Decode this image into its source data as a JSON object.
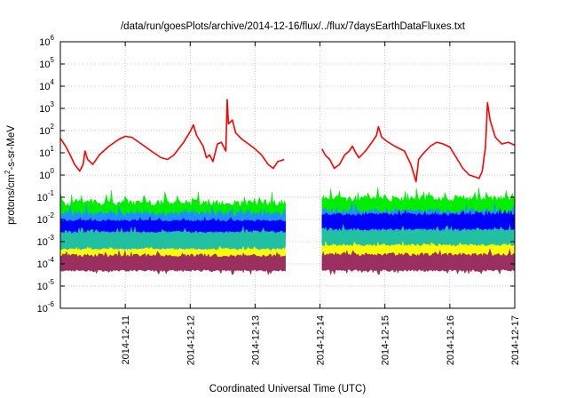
{
  "chart_data": {
    "type": "line",
    "title": "/data/run/goesPlots/archive/2014-12-16/flux/../flux/7daysEarthDataFluxes.txt",
    "xlabel": "Coordinated Universal Time (UTC)",
    "ylabel_parts": {
      "pre": "protons/cm",
      "sup": "2",
      "post": "-s-sr-MeV"
    },
    "x_range_days": [
      0,
      7
    ],
    "x_ticks": [
      {
        "day": 1,
        "label": "2014-12-11"
      },
      {
        "day": 2,
        "label": "2014-12-12"
      },
      {
        "day": 3,
        "label": "2014-12-13"
      },
      {
        "day": 4,
        "label": "2014-12-14"
      },
      {
        "day": 5,
        "label": "2014-12-15"
      },
      {
        "day": 6,
        "label": "2014-12-16"
      },
      {
        "day": 7,
        "label": "2014-12-17"
      }
    ],
    "y_scale": "log",
    "y_range_exp": [
      -6,
      6
    ],
    "y_ticks": [
      {
        "exp": 6,
        "base": "10",
        "sup": "6"
      },
      {
        "exp": 5,
        "base": "10",
        "sup": "5"
      },
      {
        "exp": 4,
        "base": "10",
        "sup": "4"
      },
      {
        "exp": 3,
        "base": "10",
        "sup": "3"
      },
      {
        "exp": 2,
        "base": "10",
        "sup": "2"
      },
      {
        "exp": 1,
        "base": "10",
        "sup": "1"
      },
      {
        "exp": 0,
        "base": "10",
        "sup": "0"
      },
      {
        "exp": -1,
        "base": "10",
        "sup": "-1"
      },
      {
        "exp": -2,
        "base": "10",
        "sup": "-2"
      },
      {
        "exp": -3,
        "base": "10",
        "sup": "-3"
      },
      {
        "exp": -4,
        "base": "10",
        "sup": "-4"
      },
      {
        "exp": -5,
        "base": "10",
        "sup": "-5"
      },
      {
        "exp": -6,
        "base": "10",
        "sup": "-6"
      }
    ],
    "grid": true,
    "data_gap_days": [
      3.47,
      4.03
    ],
    "series": [
      {
        "name": "red",
        "color": "#ff0000",
        "style": "line",
        "points": [
          [
            0.0,
            45
          ],
          [
            0.08,
            20
          ],
          [
            0.15,
            8
          ],
          [
            0.22,
            3
          ],
          [
            0.3,
            1.5
          ],
          [
            0.35,
            3
          ],
          [
            0.38,
            12
          ],
          [
            0.42,
            5
          ],
          [
            0.5,
            3
          ],
          [
            0.6,
            8
          ],
          [
            0.75,
            20
          ],
          [
            0.9,
            40
          ],
          [
            1.0,
            55
          ],
          [
            1.1,
            50
          ],
          [
            1.25,
            25
          ],
          [
            1.4,
            12
          ],
          [
            1.55,
            6
          ],
          [
            1.65,
            5
          ],
          [
            1.75,
            8
          ],
          [
            1.9,
            30
          ],
          [
            2.0,
            90
          ],
          [
            2.05,
            180
          ],
          [
            2.1,
            60
          ],
          [
            2.2,
            20
          ],
          [
            2.25,
            6
          ],
          [
            2.3,
            8
          ],
          [
            2.35,
            4
          ],
          [
            2.42,
            25
          ],
          [
            2.48,
            30
          ],
          [
            2.55,
            12
          ],
          [
            2.57,
            2500
          ],
          [
            2.59,
            200
          ],
          [
            2.65,
            300
          ],
          [
            2.7,
            80
          ],
          [
            2.8,
            40
          ],
          [
            2.9,
            25
          ],
          [
            3.0,
            15
          ],
          [
            3.1,
            8
          ],
          [
            3.2,
            3
          ],
          [
            3.28,
            2
          ],
          [
            3.35,
            4
          ],
          [
            3.45,
            5
          ],
          [
            4.03,
            15
          ],
          [
            4.08,
            8
          ],
          [
            4.15,
            5
          ],
          [
            4.22,
            2
          ],
          [
            4.3,
            3
          ],
          [
            4.38,
            8
          ],
          [
            4.45,
            12
          ],
          [
            4.5,
            20
          ],
          [
            4.55,
            10
          ],
          [
            4.6,
            6
          ],
          [
            4.7,
            12
          ],
          [
            4.8,
            30
          ],
          [
            4.87,
            60
          ],
          [
            4.9,
            150
          ],
          [
            4.95,
            50
          ],
          [
            5.05,
            30
          ],
          [
            5.15,
            20
          ],
          [
            5.3,
            12
          ],
          [
            5.4,
            3
          ],
          [
            5.45,
            1
          ],
          [
            5.48,
            0.5
          ],
          [
            5.52,
            5
          ],
          [
            5.6,
            10
          ],
          [
            5.7,
            20
          ],
          [
            5.8,
            30
          ],
          [
            5.9,
            25
          ],
          [
            6.0,
            18
          ],
          [
            6.1,
            6
          ],
          [
            6.2,
            2
          ],
          [
            6.3,
            1
          ],
          [
            6.4,
            0.8
          ],
          [
            6.45,
            0.7
          ],
          [
            6.5,
            1.5
          ],
          [
            6.55,
            20
          ],
          [
            6.58,
            1800
          ],
          [
            6.62,
            300
          ],
          [
            6.7,
            50
          ],
          [
            6.8,
            25
          ],
          [
            6.9,
            30
          ],
          [
            7.0,
            22
          ]
        ]
      },
      {
        "name": "green",
        "color": "#00ee00",
        "style": "band",
        "ranges": [
          [
            0,
            3.47,
            -2.8,
            -1.1
          ],
          [
            4.03,
            7,
            -2.6,
            -0.9
          ]
        ]
      },
      {
        "name": "light-blue",
        "color": "#1e90ff",
        "style": "band",
        "ranges": [
          [
            0,
            3.47,
            -3.0,
            -1.6
          ],
          [
            4.03,
            7,
            -3.0,
            -1.5
          ]
        ]
      },
      {
        "name": "blue",
        "color": "#0000ff",
        "style": "band",
        "ranges": [
          [
            0,
            3.47,
            -2.6,
            -2.0
          ],
          [
            4.03,
            7,
            -2.5,
            -1.7
          ]
        ]
      },
      {
        "name": "teal",
        "color": "#20c0a0",
        "style": "band",
        "ranges": [
          [
            0,
            3.47,
            -3.4,
            -2.5
          ],
          [
            4.03,
            7,
            -3.3,
            -2.4
          ]
        ]
      },
      {
        "name": "yellow",
        "color": "#ffff00",
        "style": "band",
        "ranges": [
          [
            0,
            3.47,
            -3.9,
            -3.3
          ],
          [
            4.03,
            7,
            -3.8,
            -3.1
          ]
        ]
      },
      {
        "name": "maroon",
        "color": "#9b3060",
        "style": "band",
        "ranges": [
          [
            0,
            3.47,
            -4.35,
            -3.55
          ],
          [
            4.03,
            7,
            -4.35,
            -3.5
          ]
        ]
      }
    ]
  }
}
